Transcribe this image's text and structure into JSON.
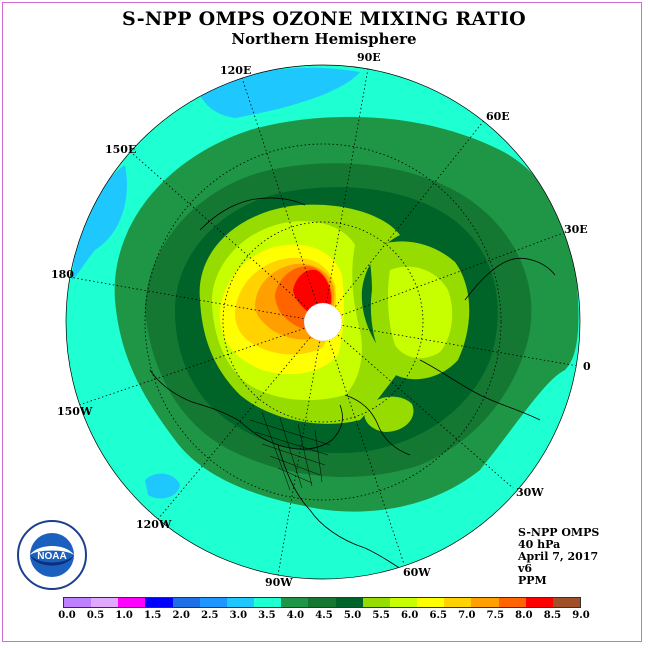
{
  "header": {
    "title": "S-NPP OMPS OZONE MIXING RATIO",
    "subtitle": "Northern Hemisphere"
  },
  "longitude_labels": {
    "lon_90e": "90E",
    "lon_120e": "120E",
    "lon_60e": "60E",
    "lon_150e": "150E",
    "lon_30e": "30E",
    "lon_180": "180",
    "lon_0": "0",
    "lon_150w": "150W",
    "lon_30w": "30W",
    "lon_120w": "120W",
    "lon_60w": "60W",
    "lon_90w": "90W"
  },
  "info": {
    "product": "S-NPP OMPS",
    "level": "40 hPa",
    "date": "April 7, 2017",
    "version": "v6",
    "units": "PPM"
  },
  "logo": {
    "text": "NOAA"
  },
  "legend": {
    "tick_labels": [
      "0.0",
      "0.5",
      "1.0",
      "1.5",
      "2.0",
      "2.5",
      "3.0",
      "3.5",
      "4.0",
      "4.5",
      "5.0",
      "5.5",
      "6.0",
      "6.5",
      "7.0",
      "7.5",
      "8.0",
      "8.5",
      "9.0"
    ],
    "colors": [
      "#bf80ff",
      "#e0a8ff",
      "#ff00ff",
      "#0000ff",
      "#1e6ee6",
      "#1e96ff",
      "#1ec8ff",
      "#1effd2",
      "#1e9646",
      "#147832",
      "#006428",
      "#96dc00",
      "#c8ff00",
      "#ffff00",
      "#ffd200",
      "#ffa000",
      "#ff6400",
      "#ff0000",
      "#a05028"
    ]
  },
  "colors": {
    "ocean_cyan": "#1effd2",
    "frame": "#d36ad3"
  }
}
